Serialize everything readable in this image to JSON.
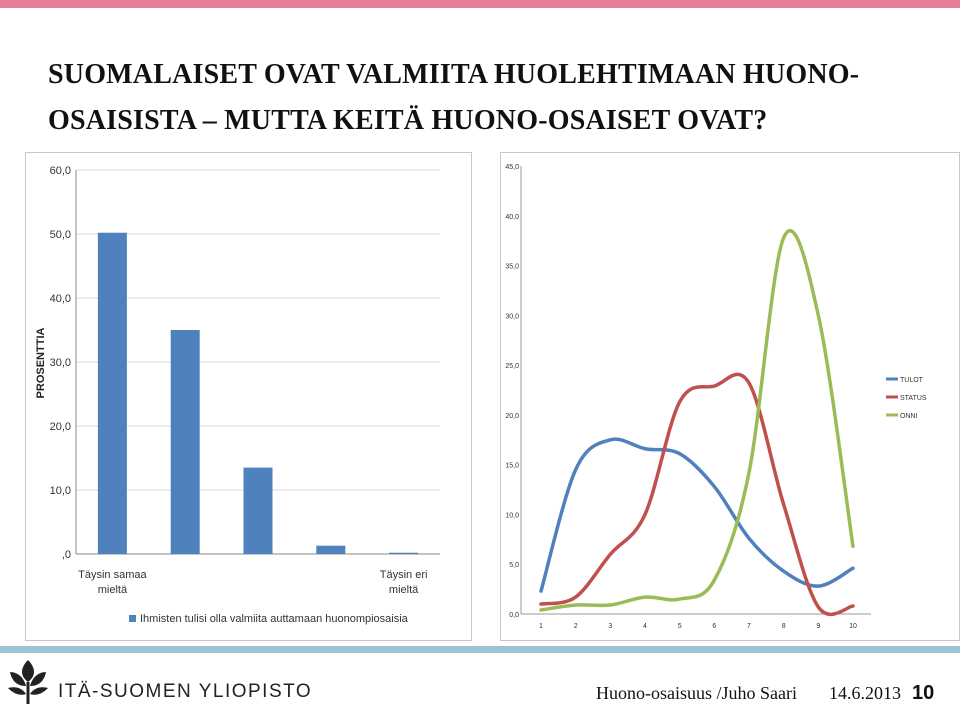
{
  "slide": {
    "title": "SUOMALAISET OVAT VALMIITA HUOLEHTIMAAN HUONO-OSAISISTA – MUTTA KEITÄ HUONO-OSAISET OVAT?",
    "university": "ITÄ-SUOMEN YLIOPISTO",
    "footer_text": "Huono-osaisuus /Juho Saari",
    "date": "14.6.2013",
    "page_number": "10"
  },
  "colors": {
    "top_bar": "#e87c98",
    "bottom_bar": "#9cc4d6",
    "blue": "#4f81bd",
    "red": "#c0504d",
    "green": "#9bbb59"
  },
  "chart_data": [
    {
      "type": "bar",
      "ylabel": "PROSENTTIA",
      "ylim": [
        0,
        60
      ],
      "yticks": [
        ",0",
        "10,0",
        "20,0",
        "30,0",
        "40,0",
        "50,0",
        "60,0"
      ],
      "categories": [
        "Täysin samaa mieltä",
        "",
        "",
        "",
        "Täysin eri mieltä"
      ],
      "series": [
        {
          "name": "Ihmisten tulisi olla valmiita auttamaan huonompiosaisia",
          "values": [
            50.2,
            35.0,
            13.5,
            1.3,
            0.2
          ]
        }
      ],
      "legend": "bottom",
      "grid": true
    },
    {
      "type": "line",
      "ylim": [
        0,
        45
      ],
      "yticks": [
        "0,0",
        "5,0",
        "10,0",
        "15,0",
        "20,0",
        "25,0",
        "30,0",
        "35,0",
        "40,0",
        "45,0"
      ],
      "x": [
        "1",
        "2",
        "3",
        "4",
        "5",
        "6",
        "7",
        "8",
        "9",
        "10"
      ],
      "series": [
        {
          "name": "TULOT",
          "values": [
            2.3,
            14.5,
            17.5,
            16.6,
            16.1,
            12.8,
            7.6,
            4.3,
            2.8,
            4.6
          ]
        },
        {
          "name": "STATUS",
          "values": [
            1.0,
            1.7,
            6.0,
            10.0,
            21.3,
            22.9,
            23.2,
            11.0,
            0.7,
            0.8
          ]
        },
        {
          "name": "ONNI",
          "values": [
            0.4,
            0.9,
            0.9,
            1.7,
            1.5,
            3.4,
            14.2,
            37.8,
            30.0,
            6.8
          ]
        }
      ],
      "legend": "right",
      "grid": false
    }
  ]
}
